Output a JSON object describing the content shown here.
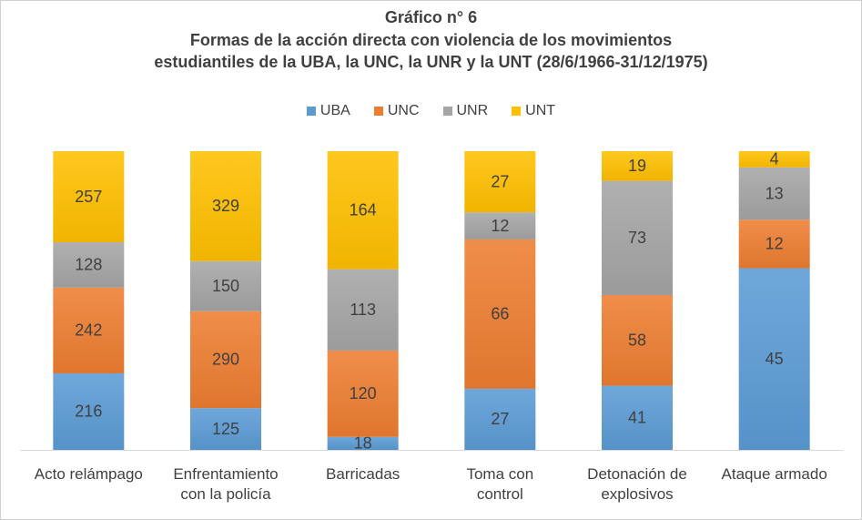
{
  "chart_data": {
    "type": "bar",
    "stacked": "100%",
    "title_lines": [
      "Gráfico n° 6",
      "Formas de la acción directa con violencia de los movimientos",
      "estudiantiles  de la UBA, la UNC, la UNR y la UNT (28/6/1966-31/12/1975)"
    ],
    "categories": [
      [
        "Acto relámpago"
      ],
      [
        "Enfrentamiento",
        "con la policía"
      ],
      [
        "Barricadas"
      ],
      [
        "Toma con",
        "control"
      ],
      [
        "Detonación de",
        "explosivos"
      ],
      [
        "Ataque armado"
      ]
    ],
    "series": [
      {
        "name": "UBA",
        "color": "#5B9BD5",
        "values": [
          216,
          125,
          18,
          27,
          41,
          45
        ]
      },
      {
        "name": "UNC",
        "color": "#ED7D31",
        "values": [
          242,
          290,
          120,
          66,
          58,
          12
        ]
      },
      {
        "name": "UNR",
        "color": "#A5A5A5",
        "values": [
          128,
          150,
          113,
          12,
          73,
          13
        ]
      },
      {
        "name": "UNT",
        "color": "#FFC000",
        "values": [
          257,
          329,
          164,
          27,
          19,
          4
        ]
      }
    ],
    "legend_position": "top",
    "grid": false
  }
}
